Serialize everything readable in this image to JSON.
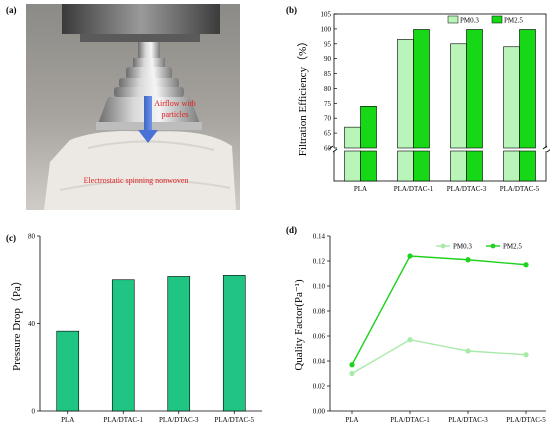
{
  "panels": {
    "a": {
      "label": "(a)",
      "annotation_airflow": [
        "Airflow with",
        "particles"
      ],
      "annotation_material": "Electrostatic spinning nonwoven"
    }
  },
  "chart_data": [
    {
      "id": "b",
      "panel_label": "(b)",
      "type": "bar",
      "title": "",
      "xlabel": "",
      "ylabel": "Filtration Efficiency（%）",
      "categories": [
        "PLA",
        "PLA/DTAC-1",
        "PLA/DTAC-3",
        "PLA/DTAC-5"
      ],
      "series": [
        {
          "name": "PM0.3",
          "values": [
            67,
            96.5,
            95,
            94
          ],
          "color": "#b9f5b9"
        },
        {
          "name": "PM2.5",
          "values": [
            74,
            99.8,
            99.8,
            99.8
          ],
          "color": "#16d816"
        }
      ],
      "y_break": [
        0,
        60
      ],
      "ylim": [
        60,
        105
      ],
      "yticks": [
        60,
        65,
        70,
        75,
        80,
        85,
        90,
        95,
        100,
        105
      ],
      "legend": "top-right"
    },
    {
      "id": "c",
      "panel_label": "(c)",
      "type": "bar",
      "title": "",
      "xlabel": "",
      "ylabel": "Pressure Drop（Pa）",
      "categories": [
        "PLA",
        "PLA/DTAC-1",
        "PLA/DTAC-3",
        "PLA/DTAC-5"
      ],
      "values": [
        36.5,
        60,
        61.5,
        62
      ],
      "color": "#20c584",
      "ylim": [
        0,
        80
      ],
      "yticks": [
        0,
        40,
        80
      ]
    },
    {
      "id": "d",
      "panel_label": "(d)",
      "type": "line",
      "title": "",
      "xlabel": "",
      "ylabel": "Quality Factor(Pa⁻¹)",
      "categories": [
        "PLA",
        "PLA/DTAC-1",
        "PLA/DTAC-3",
        "PLA/DTAC-5"
      ],
      "series": [
        {
          "name": "PM0.3",
          "values": [
            0.03,
            0.057,
            0.048,
            0.045
          ],
          "color": "#a8eaa8"
        },
        {
          "name": "PM2.5",
          "values": [
            0.037,
            0.124,
            0.121,
            0.117
          ],
          "color": "#1ed21e"
        }
      ],
      "ylim": [
        0,
        0.14
      ],
      "yticks": [
        "0.00",
        "0.02",
        "0.04",
        "0.06",
        "0.08",
        "0.10",
        "0.12",
        "0.14"
      ],
      "legend": "top-right"
    }
  ]
}
